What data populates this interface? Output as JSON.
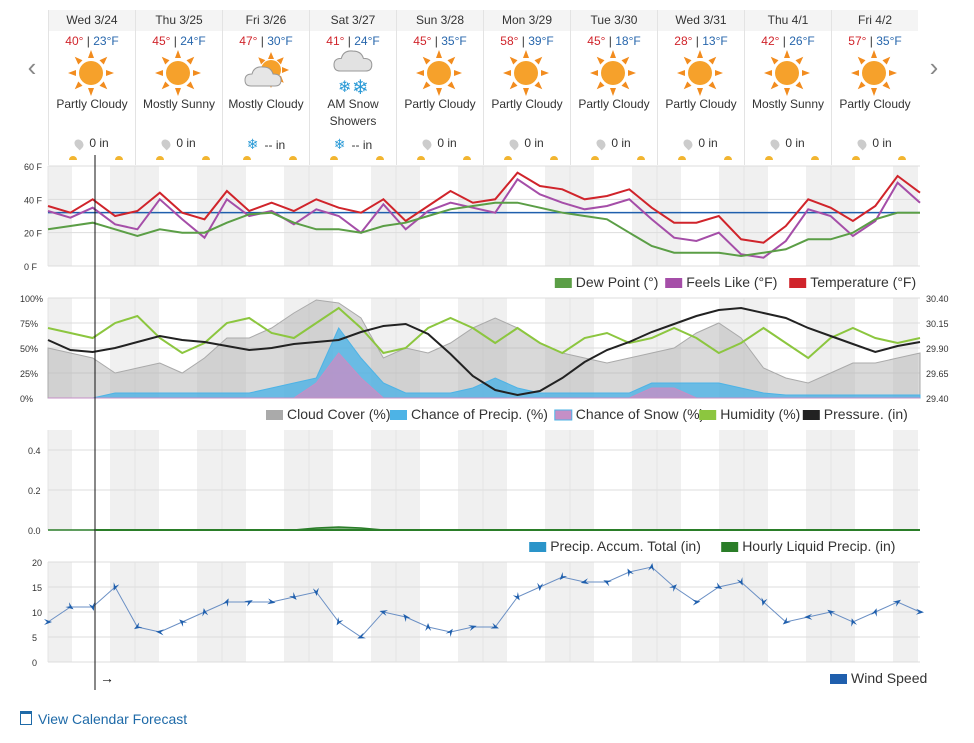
{
  "nav": {
    "prev_icon": "‹",
    "next_icon": "›"
  },
  "days": [
    {
      "date": "Wed 3/24",
      "hi": "40°",
      "lo": "23°F",
      "cond": "Partly Cloudy",
      "icon": "partly-sunny",
      "precip": "0 in",
      "precip_icon": "drop"
    },
    {
      "date": "Thu 3/25",
      "hi": "45°",
      "lo": "24°F",
      "cond": "Mostly Sunny",
      "icon": "sunny",
      "precip": "0 in",
      "precip_icon": "drop"
    },
    {
      "date": "Fri 3/26",
      "hi": "47°",
      "lo": "30°F",
      "cond": "Mostly Cloudy",
      "icon": "mostly-cloudy",
      "precip": "-- in",
      "precip_icon": "snowflake"
    },
    {
      "date": "Sat 3/27",
      "hi": "41°",
      "lo": "24°F",
      "cond": "AM Snow Showers",
      "icon": "snow",
      "precip": "-- in",
      "precip_icon": "snowflake"
    },
    {
      "date": "Sun 3/28",
      "hi": "45°",
      "lo": "35°F",
      "cond": "Partly Cloudy",
      "icon": "partly-sunny",
      "precip": "0 in",
      "precip_icon": "drop"
    },
    {
      "date": "Mon 3/29",
      "hi": "58°",
      "lo": "39°F",
      "cond": "Partly Cloudy",
      "icon": "partly-sunny",
      "precip": "0 in",
      "precip_icon": "drop"
    },
    {
      "date": "Tue 3/30",
      "hi": "45°",
      "lo": "18°F",
      "cond": "Partly Cloudy",
      "icon": "partly-sunny",
      "precip": "0 in",
      "precip_icon": "drop"
    },
    {
      "date": "Wed 3/31",
      "hi": "28°",
      "lo": "13°F",
      "cond": "Partly Cloudy",
      "icon": "partly-sunny",
      "precip": "0 in",
      "precip_icon": "drop"
    },
    {
      "date": "Thu 4/1",
      "hi": "42°",
      "lo": "26°F",
      "cond": "Mostly Sunny",
      "icon": "sunny",
      "precip": "0 in",
      "precip_icon": "drop"
    },
    {
      "date": "Fri 4/2",
      "hi": "57°",
      "lo": "35°F",
      "cond": "Partly Cloudy",
      "icon": "partly-sunny",
      "precip": "0 in",
      "precip_icon": "drop"
    }
  ],
  "footer": {
    "link": "View Calendar Forecast"
  },
  "cursor_arrow": "→",
  "colors": {
    "temperature": "#d0242b",
    "feels_like": "#a54ea8",
    "dew_point": "#5b9e46",
    "freezing": "#1f5fad",
    "cloud_cover": "#aaaaaa",
    "chance_precip": "#4db3e6",
    "chance_snow": "#c58fc6",
    "humidity": "#8cc63f",
    "pressure": "#222222",
    "precip_accum": "#2a94c9",
    "hourly_liquid": "#2a7d28",
    "wind": "#1f5fad",
    "night_shade": "#f0f0f0"
  },
  "chart_data": [
    {
      "type": "line",
      "yticks": [
        "60 F",
        "40 F",
        "20 F",
        "0 F"
      ],
      "ylim": [
        0,
        60
      ],
      "legend": [
        "Dew Point (°)",
        "Feels Like (°F)",
        "Temperature (°F)"
      ],
      "freezing_line": 32,
      "series": [
        {
          "name": "Temperature (°F)",
          "values": [
            36,
            32,
            40,
            30,
            33,
            44,
            32,
            28,
            45,
            33,
            38,
            33,
            40,
            35,
            32,
            40,
            27,
            36,
            45,
            38,
            40,
            56,
            48,
            46,
            40,
            42,
            46,
            35,
            26,
            26,
            30,
            16,
            14,
            24,
            40,
            35,
            27,
            36,
            54,
            44
          ]
        },
        {
          "name": "Feels Like (°F)",
          "values": [
            33,
            29,
            35,
            25,
            22,
            40,
            28,
            17,
            40,
            30,
            33,
            25,
            34,
            30,
            20,
            37,
            22,
            33,
            38,
            35,
            32,
            52,
            43,
            38,
            34,
            36,
            40,
            28,
            17,
            15,
            20,
            7,
            5,
            15,
            34,
            30,
            18,
            27,
            50,
            38
          ]
        },
        {
          "name": "Dew Point (°)",
          "values": [
            22,
            24,
            26,
            22,
            18,
            22,
            20,
            20,
            26,
            31,
            32,
            26,
            22,
            22,
            20,
            24,
            26,
            30,
            34,
            36,
            38,
            38,
            35,
            32,
            30,
            28,
            20,
            12,
            8,
            8,
            8,
            6,
            8,
            10,
            16,
            16,
            20,
            28,
            32,
            32
          ]
        }
      ]
    },
    {
      "type": "line",
      "yticks_left": [
        "100%",
        "75%",
        "50%",
        "25%",
        "0%"
      ],
      "yticks_right": [
        "30.40",
        "30.15",
        "29.90",
        "29.65",
        "29.40"
      ],
      "ylim": [
        0,
        100
      ],
      "ylim_right": [
        29.4,
        30.4
      ],
      "legend": [
        "Cloud Cover (%)",
        "Chance of Precip. (%)",
        "Chance of Snow (%)",
        "Humidity (%)",
        "Pressure. (in)"
      ],
      "series": [
        {
          "name": "Cloud Cover (%)",
          "values": [
            50,
            45,
            40,
            25,
            30,
            35,
            25,
            40,
            60,
            60,
            70,
            85,
            98,
            95,
            80,
            40,
            50,
            45,
            55,
            70,
            80,
            70,
            55,
            45,
            40,
            35,
            40,
            45,
            50,
            65,
            75,
            60,
            30,
            20,
            15,
            25,
            35,
            35,
            40,
            45
          ]
        },
        {
          "name": "Chance of Precip. (%)",
          "values": [
            0,
            0,
            0,
            5,
            5,
            5,
            5,
            5,
            5,
            5,
            10,
            15,
            20,
            70,
            40,
            15,
            5,
            5,
            5,
            10,
            20,
            10,
            5,
            5,
            5,
            5,
            5,
            15,
            15,
            15,
            15,
            10,
            5,
            3,
            3,
            3,
            3,
            3,
            3,
            3
          ]
        },
        {
          "name": "Chance of Snow (%)",
          "values": [
            0,
            0,
            0,
            0,
            0,
            0,
            0,
            0,
            0,
            0,
            0,
            0,
            15,
            45,
            20,
            0,
            0,
            0,
            0,
            0,
            0,
            0,
            0,
            0,
            0,
            0,
            0,
            10,
            10,
            0,
            0,
            0,
            0,
            0,
            0,
            0,
            0,
            0,
            0,
            0
          ]
        },
        {
          "name": "Humidity (%)",
          "values": [
            70,
            65,
            60,
            75,
            82,
            60,
            45,
            55,
            75,
            80,
            65,
            60,
            75,
            90,
            70,
            45,
            50,
            70,
            80,
            70,
            55,
            70,
            55,
            45,
            60,
            65,
            55,
            60,
            70,
            60,
            45,
            55,
            70,
            55,
            40,
            60,
            70,
            60,
            55,
            60
          ]
        },
        {
          "name": "Pressure. (in)",
          "values": [
            29.98,
            29.88,
            29.86,
            29.9,
            29.96,
            30.02,
            29.98,
            29.96,
            29.92,
            29.88,
            29.9,
            29.94,
            29.96,
            29.98,
            30.06,
            30.12,
            30.14,
            30.04,
            29.84,
            29.62,
            29.48,
            29.43,
            29.47,
            29.6,
            29.76,
            29.88,
            29.96,
            30.06,
            30.14,
            30.22,
            30.28,
            30.3,
            30.25,
            30.2,
            30.1,
            30.02,
            29.94,
            29.86,
            29.92,
            29.96
          ]
        }
      ]
    },
    {
      "type": "line",
      "yticks": [
        "0.4",
        "0.2",
        "0.0"
      ],
      "ylim": [
        0,
        0.5
      ],
      "legend": [
        "Precip. Accum. Total (in)",
        "Hourly Liquid Precip. (in)"
      ],
      "series": [
        {
          "name": "Hourly Liquid Precip. (in)",
          "values": [
            0,
            0,
            0,
            0,
            0,
            0,
            0,
            0,
            0,
            0,
            0,
            0,
            0.01,
            0.015,
            0.01,
            0,
            0,
            0,
            0,
            0,
            0,
            0,
            0,
            0,
            0,
            0,
            0,
            0,
            0,
            0,
            0,
            0,
            0,
            0,
            0,
            0,
            0,
            0,
            0,
            0
          ]
        },
        {
          "name": "Precip. Accum. Total (in)",
          "values": [
            0,
            0,
            0,
            0,
            0,
            0,
            0,
            0,
            0,
            0,
            0,
            0,
            0,
            0,
            0,
            0,
            0,
            0,
            0,
            0,
            0,
            0,
            0,
            0,
            0,
            0,
            0,
            0,
            0,
            0,
            0,
            0,
            0,
            0,
            0,
            0,
            0,
            0,
            0,
            0
          ]
        }
      ]
    },
    {
      "type": "line",
      "yticks": [
        "20",
        "15",
        "10",
        "5",
        "0"
      ],
      "ylim": [
        0,
        20
      ],
      "legend": [
        "Wind Speed"
      ],
      "series": [
        {
          "name": "Wind Speed",
          "values": [
            8,
            11,
            11,
            15,
            7,
            6,
            8,
            10,
            12,
            12,
            12,
            13,
            14,
            8,
            5,
            10,
            9,
            7,
            6,
            7,
            7,
            13,
            15,
            17,
            16,
            16,
            18,
            19,
            15,
            12,
            15,
            16,
            12,
            8,
            9,
            10,
            8,
            10,
            12,
            10
          ]
        }
      ]
    }
  ]
}
